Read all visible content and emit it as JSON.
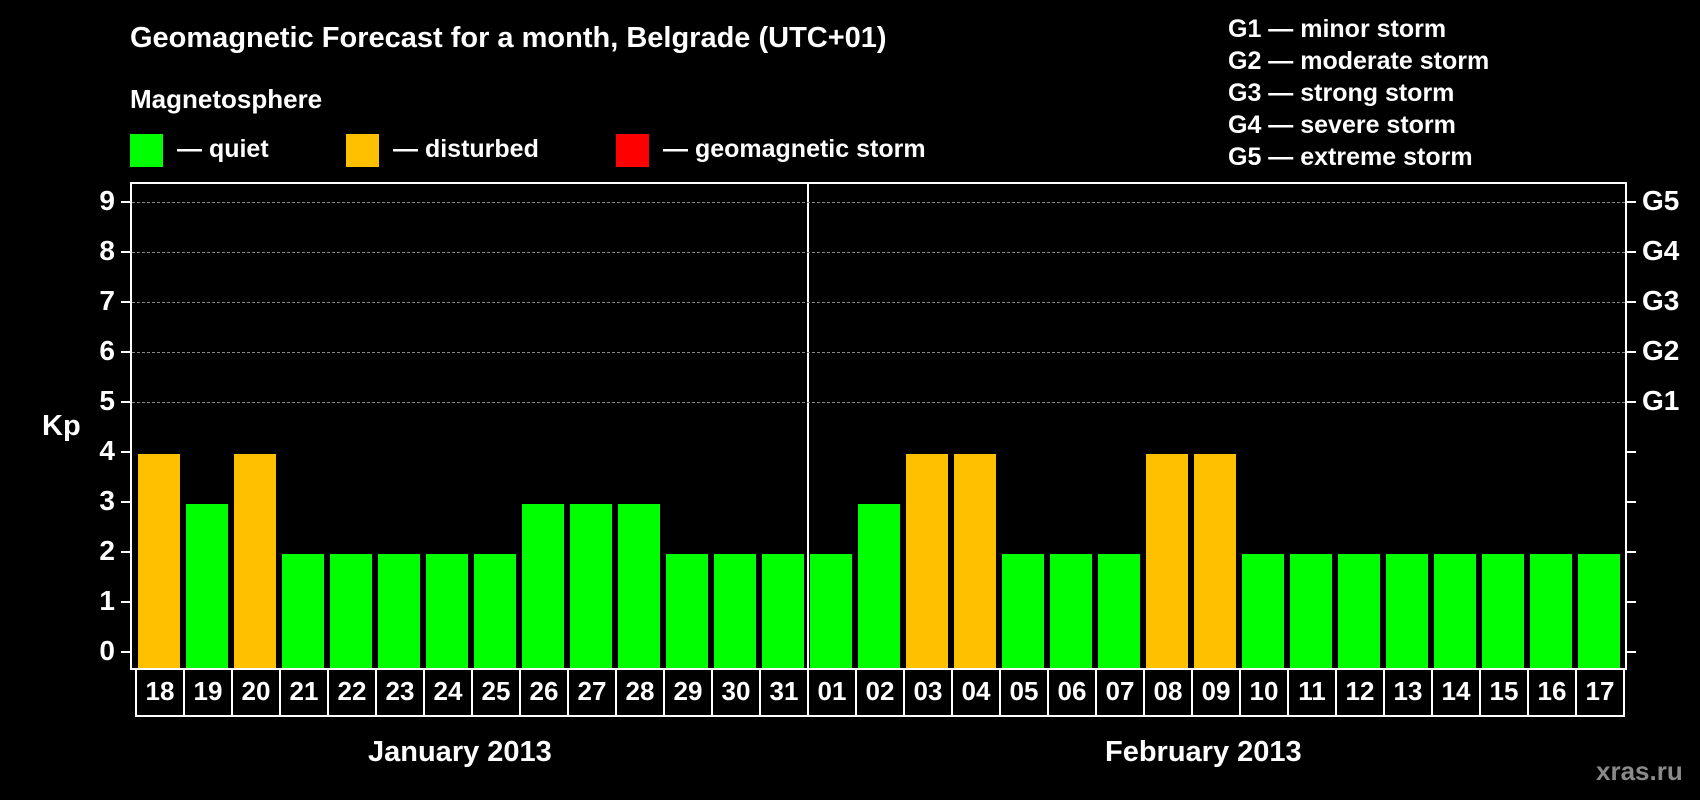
{
  "title": "Geomagnetic Forecast for a month, Belgrade (UTC+01)",
  "legend": {
    "heading": "Magnetosphere",
    "items": [
      {
        "label": "— quiet",
        "color": "#00ff00"
      },
      {
        "label": "— disturbed",
        "color": "#ffc000"
      },
      {
        "label": "— geomagnetic storm",
        "color": "#ff0000"
      }
    ]
  },
  "storm_scale": [
    "G1 — minor storm",
    "G2 — moderate storm",
    "G3 — strong storm",
    "G4 — severe storm",
    "G5 — extreme storm"
  ],
  "axis": {
    "ylabel": "Kp",
    "yticks": [
      "0",
      "1",
      "2",
      "3",
      "4",
      "5",
      "6",
      "7",
      "8",
      "9"
    ],
    "right_ticks": {
      "5": "G1",
      "6": "G2",
      "7": "G3",
      "8": "G4",
      "9": "G5"
    }
  },
  "months": [
    "January 2013",
    "February 2013"
  ],
  "watermark": "xras.ru",
  "chart_data": {
    "type": "bar",
    "title": "Geomagnetic Forecast for a month, Belgrade (UTC+01)",
    "xlabel": "January 2013 / February 2013",
    "ylabel": "Kp",
    "ylim": [
      0,
      9
    ],
    "grid": true,
    "categories": [
      "18",
      "19",
      "20",
      "21",
      "22",
      "23",
      "24",
      "25",
      "26",
      "27",
      "28",
      "29",
      "30",
      "31",
      "01",
      "02",
      "03",
      "04",
      "05",
      "06",
      "07",
      "08",
      "09",
      "10",
      "11",
      "12",
      "13",
      "14",
      "15",
      "16",
      "17"
    ],
    "values": [
      4,
      3,
      4,
      2,
      2,
      2,
      2,
      2,
      3,
      3,
      3,
      2,
      2,
      2,
      2,
      3,
      4,
      4,
      2,
      2,
      2,
      4,
      4,
      2,
      2,
      2,
      2,
      2,
      2,
      2,
      2
    ],
    "status": [
      "disturbed",
      "quiet",
      "disturbed",
      "quiet",
      "quiet",
      "quiet",
      "quiet",
      "quiet",
      "quiet",
      "quiet",
      "quiet",
      "quiet",
      "quiet",
      "quiet",
      "quiet",
      "quiet",
      "disturbed",
      "disturbed",
      "quiet",
      "quiet",
      "quiet",
      "disturbed",
      "disturbed",
      "quiet",
      "quiet",
      "quiet",
      "quiet",
      "quiet",
      "quiet",
      "quiet",
      "quiet"
    ],
    "colors": {
      "quiet": "#00ff00",
      "disturbed": "#ffc000",
      "storm": "#ff0000"
    },
    "legend": [
      "quiet",
      "disturbed",
      "geomagnetic storm"
    ],
    "right_axis": {
      "5": "G1",
      "6": "G2",
      "7": "G3",
      "8": "G4",
      "9": "G5"
    }
  }
}
